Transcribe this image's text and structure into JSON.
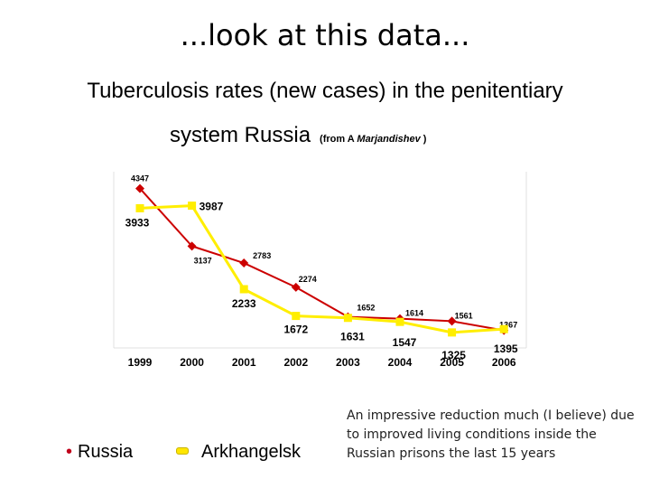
{
  "slide": {
    "heading": "...look at this data...",
    "subtitle_line1": "Tuberculosis rates (new cases) in the penitentiary",
    "subtitle_line2": "system Russia",
    "source_prefix": "(from A ",
    "source_name": "Marjandishev",
    "source_suffix": " )",
    "note": "An impressive reduction much (I believe) due to improved living conditions inside the Russian prisons the last 15 years"
  },
  "legend": {
    "russia_bullet": "•",
    "russia": "Russia",
    "arkhangelsk": "Arkhangelsk"
  },
  "chart_data": {
    "type": "line",
    "categories": [
      "1999",
      "2000",
      "2001",
      "2002",
      "2003",
      "2004",
      "2005",
      "2006"
    ],
    "ylim": [
      1000,
      4700
    ],
    "grid": false,
    "series": [
      {
        "name": "Russia",
        "color": "#cc0000",
        "marker": "diamond",
        "values": [
          4347,
          3137,
          2783,
          2274,
          1652,
          1614,
          1561,
          1367
        ],
        "labels": [
          "4347",
          "3137",
          "2783",
          "2274",
          "1652",
          "1614",
          "1561",
          "1367"
        ]
      },
      {
        "name": "Arkhangelsk",
        "color": "#ffee00",
        "marker": "square",
        "values": [
          3933,
          3987,
          2233,
          1672,
          1631,
          1547,
          1325,
          1395
        ],
        "labels": [
          "3933",
          "3987",
          "2233",
          "1672",
          "1631",
          "1547",
          "1325",
          "1395"
        ]
      }
    ]
  }
}
